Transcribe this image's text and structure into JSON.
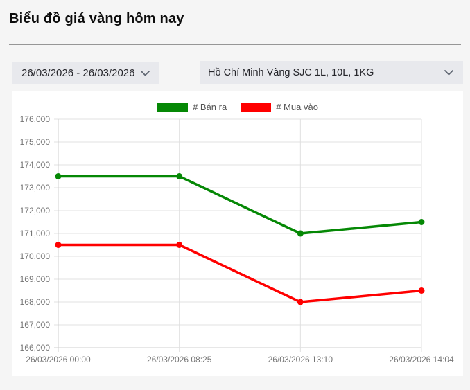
{
  "page": {
    "title": "Biểu đồ giá vàng hôm nay"
  },
  "controls": {
    "date_range": "26/03/2026 - 26/03/2026",
    "series_select": "Hồ Chí Minh Vàng SJC 1L, 10L, 1KG"
  },
  "colors": {
    "page_bg": "#f5f5f5",
    "panel_bg": "#ffffff",
    "control_bg": "#e8e9ed",
    "grid": "#e0e0e0",
    "axis_line": "#cfcfcf",
    "axis_text": "#757575",
    "legend_text": "#545454"
  },
  "chart_data": {
    "type": "line",
    "title": "",
    "x": [
      "26/03/2026 00:00",
      "26/03/2026 08:25",
      "26/03/2026 13:10",
      "26/03/2026 14:04"
    ],
    "series": [
      {
        "name": "# Bán ra",
        "color": "#058805",
        "values": [
          173500,
          173500,
          171000,
          171500
        ]
      },
      {
        "name": "# Mua vào",
        "color": "#ff0000",
        "values": [
          170500,
          170500,
          168000,
          168500
        ]
      }
    ],
    "ylim": [
      166000,
      176000
    ],
    "y_step": 1000,
    "grid": true,
    "legend_position": "top"
  }
}
